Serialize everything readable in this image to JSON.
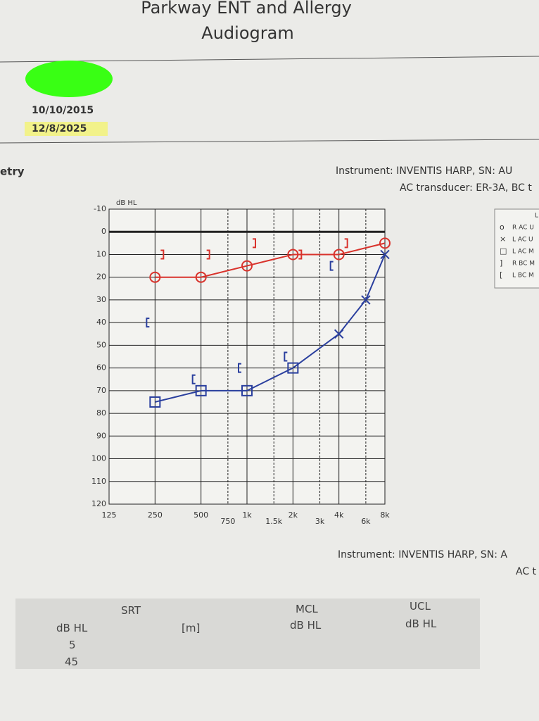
{
  "header": {
    "clinic": "Parkway ENT and Allergy",
    "title": "Audiogram",
    "dates": [
      "10/10/2015",
      "12/8/2025"
    ],
    "section": "etry",
    "instrument": "Instrument: INVENTIS HARP, SN: AU",
    "transducer": "AC transducer: ER-3A, BC t"
  },
  "chart_data": {
    "type": "audiogram",
    "ylabel": "dB HL",
    "xscale": "log",
    "y_reversed": true,
    "grid": true,
    "xlim": [
      125,
      8000
    ],
    "xticks": [
      125,
      250,
      {
        "value": 500,
        "label": "500"
      },
      {
        "value": 750,
        "label": "750"
      },
      {
        "value": 1000,
        "label": "1k"
      },
      {
        "value": 1500,
        "label": "1.5k"
      },
      {
        "value": 2000,
        "label": "2k"
      },
      {
        "value": 3000,
        "label": "3k"
      },
      {
        "value": 4000,
        "label": "4k"
      },
      {
        "value": 6000,
        "label": "6k"
      },
      {
        "value": 8000,
        "label": "8k"
      }
    ],
    "ylim": [
      -10,
      120
    ],
    "yticks": [
      -10,
      0,
      10,
      20,
      30,
      40,
      50,
      60,
      70,
      80,
      90,
      100,
      110,
      120
    ],
    "legend_title": "L",
    "series": [
      {
        "name": "R AC U",
        "color": "#d9332c",
        "marker": "circle",
        "line": true,
        "x": [
          250,
          500,
          1000,
          2000,
          4000,
          8000
        ],
        "values": [
          20,
          20,
          15,
          10,
          10,
          5
        ]
      },
      {
        "name": "L AC U",
        "color": "#2a3f9e",
        "marker": "x",
        "line": true,
        "x": [
          4000,
          6000,
          8000
        ],
        "values": [
          45,
          30,
          10
        ]
      },
      {
        "name": "L AC M",
        "color": "#2a3f9e",
        "marker": "square",
        "line": true,
        "x": [
          250,
          500,
          1000,
          2000
        ],
        "values": [
          75,
          70,
          70,
          60
        ]
      },
      {
        "name": "R BC M",
        "color": "#d9332c",
        "marker": "rbracket",
        "line": false,
        "x": [
          250,
          500,
          1000,
          2000,
          4000
        ],
        "values": [
          10,
          10,
          5,
          10,
          5
        ]
      },
      {
        "name": "L BC M",
        "color": "#2a3f9e",
        "marker": "lbracket",
        "line": false,
        "x": [
          250,
          500,
          1000,
          2000,
          4000
        ],
        "values": [
          40,
          65,
          60,
          55,
          15
        ]
      }
    ]
  },
  "footer": {
    "instrument": "Instrument: INVENTIS HARP, SN: A",
    "transducer": "AC t"
  },
  "table": {
    "headers": [
      "SRT",
      "MCL",
      "UCL"
    ],
    "units": [
      "dB HL",
      "[m]",
      "dB HL",
      "dB HL"
    ],
    "rows": [
      "5",
      "45"
    ]
  }
}
